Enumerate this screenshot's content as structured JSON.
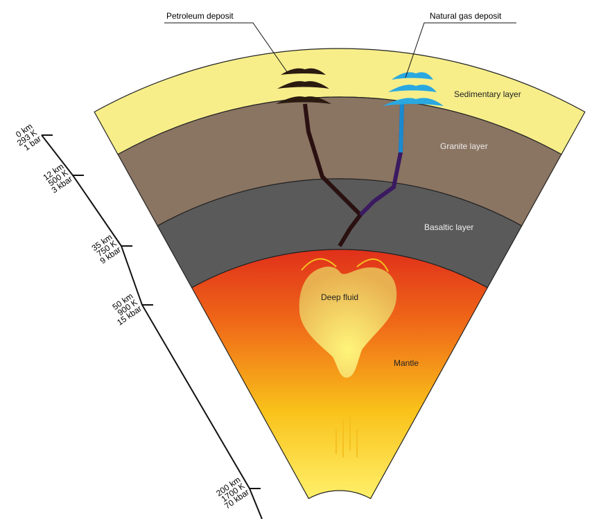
{
  "labels": {
    "petroleum": "Petroleum deposit",
    "gas": "Natural gas deposit"
  },
  "layers": {
    "sedimentary": "Sedimentary layer",
    "granite": "Granite layer",
    "basaltic": "Basaltic layer",
    "fluid": "Deep fluid",
    "mantle": "Mantle"
  },
  "scale": [
    {
      "depth": "0 km",
      "temperature": "293 K",
      "pressure": "1 bar"
    },
    {
      "depth": "12 km",
      "temperature": "500 K",
      "pressure": "3 kbar"
    },
    {
      "depth": "35 km",
      "temperature": "750 K",
      "pressure": "9 kbar"
    },
    {
      "depth": "50 km",
      "temperature": "900 K",
      "pressure": "15 kbar"
    },
    {
      "depth": "200 km",
      "temperature": "1700 K",
      "pressure": "70 kbar"
    }
  ]
}
